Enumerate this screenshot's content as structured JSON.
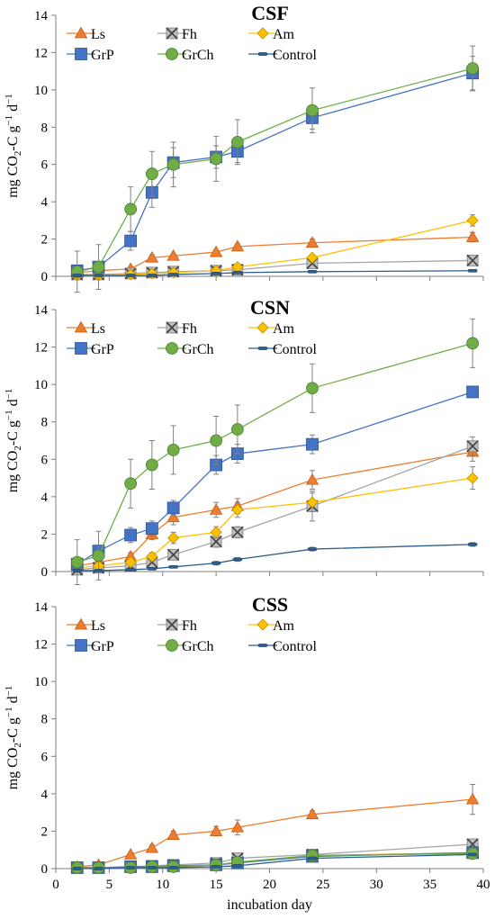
{
  "chart_data": [
    {
      "type": "line",
      "title": "CSF",
      "ylabel": "mg CO2-C g-1 d-1",
      "ylim": [
        0,
        14
      ],
      "yticks": [
        0,
        2,
        4,
        6,
        8,
        10,
        12,
        14
      ],
      "x": [
        2,
        4,
        7,
        9,
        11,
        15,
        17,
        24,
        39
      ],
      "legend": "top-left, 3 columns",
      "series": [
        {
          "name": "Ls",
          "marker": "triangle",
          "color": "#ED7D31",
          "values": [
            0.2,
            0.3,
            0.4,
            1.0,
            1.1,
            1.3,
            1.6,
            1.8,
            2.1
          ],
          "errors": [
            0.05,
            0.1,
            0.1,
            0.15,
            0.1,
            0.1,
            0.15,
            0.2,
            0.25
          ]
        },
        {
          "name": "Fh",
          "marker": "x-square",
          "color": "#A5A5A5",
          "values": [
            0.1,
            0.1,
            0.15,
            0.2,
            0.25,
            0.3,
            0.35,
            0.7,
            0.85
          ],
          "errors": [
            0.05,
            0.05,
            0.05,
            0.05,
            0.05,
            0.05,
            0.05,
            0.1,
            0.1
          ]
        },
        {
          "name": "Am",
          "marker": "diamond",
          "color": "#FFC000",
          "values": [
            0.05,
            0.05,
            0.1,
            0.15,
            0.2,
            0.3,
            0.5,
            1.0,
            3.0
          ],
          "errors": [
            0.03,
            0.03,
            0.05,
            0.05,
            0.05,
            0.05,
            0.1,
            0.15,
            0.3
          ]
        },
        {
          "name": "GrP",
          "marker": "square",
          "color": "#4472C4",
          "values": [
            0.3,
            0.5,
            1.9,
            4.5,
            6.1,
            6.4,
            6.7,
            8.5,
            10.9
          ],
          "errors": [
            0.2,
            0.2,
            0.5,
            0.8,
            0.8,
            0.6,
            0.6,
            0.6,
            0.9
          ]
        },
        {
          "name": "GrCh",
          "marker": "circle",
          "color": "#70AD47",
          "values": [
            0.25,
            0.5,
            3.6,
            5.5,
            6.0,
            6.3,
            7.2,
            8.9,
            11.15
          ],
          "errors": [
            1.1,
            1.2,
            1.2,
            1.2,
            1.2,
            1.2,
            1.2,
            1.2,
            1.2
          ]
        },
        {
          "name": "Control",
          "marker": "dash",
          "color": "#2E5E8C",
          "values": [
            0.05,
            0.05,
            0.05,
            0.05,
            0.1,
            0.15,
            0.2,
            0.25,
            0.3
          ],
          "errors": [
            0.02,
            0.02,
            0.02,
            0.02,
            0.03,
            0.03,
            0.03,
            0.05,
            0.05
          ]
        }
      ]
    },
    {
      "type": "line",
      "title": "CSN",
      "ylabel": "mg CO2-C g-1 d-1",
      "ylim": [
        0,
        14
      ],
      "yticks": [
        0,
        2,
        4,
        6,
        8,
        10,
        12,
        14
      ],
      "x": [
        2,
        4,
        7,
        9,
        11,
        15,
        17,
        24,
        39
      ],
      "legend": "top-left, 3 columns",
      "series": [
        {
          "name": "Ls",
          "marker": "triangle",
          "color": "#ED7D31",
          "values": [
            0.3,
            0.5,
            0.8,
            2.0,
            2.9,
            3.3,
            3.5,
            4.9,
            6.4
          ],
          "errors": [
            0.1,
            0.2,
            0.2,
            0.3,
            0.4,
            0.4,
            0.4,
            0.5,
            0.5
          ]
        },
        {
          "name": "Fh",
          "marker": "x-square",
          "color": "#A5A5A5",
          "values": [
            0.1,
            0.2,
            0.3,
            0.5,
            0.9,
            1.6,
            2.1,
            3.5,
            6.7
          ],
          "errors": [
            0.1,
            0.1,
            0.1,
            0.15,
            0.2,
            0.3,
            0.3,
            0.8,
            0.5
          ]
        },
        {
          "name": "Am",
          "marker": "diamond",
          "color": "#FFC000",
          "values": [
            0.2,
            0.3,
            0.5,
            0.8,
            1.8,
            2.1,
            3.3,
            3.7,
            5.0
          ],
          "errors": [
            0.1,
            0.1,
            0.15,
            0.2,
            0.3,
            0.3,
            0.4,
            0.5,
            0.6
          ]
        },
        {
          "name": "GrP",
          "marker": "square",
          "color": "#4472C4",
          "values": [
            0.4,
            1.1,
            1.95,
            2.3,
            3.4,
            5.7,
            6.3,
            6.8,
            9.6
          ],
          "errors": [
            0.3,
            0.3,
            0.4,
            0.4,
            0.4,
            0.5,
            0.5,
            0.5,
            0.3
          ]
        },
        {
          "name": "GrCh",
          "marker": "circle",
          "color": "#70AD47",
          "values": [
            0.5,
            0.85,
            4.7,
            5.7,
            6.5,
            7.0,
            7.6,
            9.8,
            12.2
          ],
          "errors": [
            1.2,
            1.3,
            1.3,
            1.3,
            1.3,
            1.3,
            1.3,
            1.3,
            1.3
          ]
        },
        {
          "name": "Control",
          "marker": "dash",
          "color": "#2E5E8C",
          "values": [
            0.05,
            0.05,
            0.1,
            0.15,
            0.25,
            0.45,
            0.65,
            1.2,
            1.45
          ],
          "errors": [
            0.02,
            0.02,
            0.03,
            0.05,
            0.05,
            0.1,
            0.1,
            0.1,
            0.1
          ]
        }
      ]
    },
    {
      "type": "line",
      "title": "CSS",
      "ylabel": "mg CO2-C g-1 d-1",
      "xlabel": "incubation day",
      "ylim": [
        0,
        14
      ],
      "yticks": [
        0,
        2,
        4,
        6,
        8,
        10,
        12,
        14
      ],
      "xlim": [
        0,
        40
      ],
      "xticks": [
        0,
        5,
        10,
        15,
        20,
        25,
        30,
        35,
        40
      ],
      "x": [
        2,
        4,
        7,
        9,
        11,
        15,
        17,
        24,
        39
      ],
      "legend": "top-left, 3 columns",
      "series": [
        {
          "name": "Ls",
          "marker": "triangle",
          "color": "#ED7D31",
          "values": [
            0.1,
            0.2,
            0.75,
            1.1,
            1.8,
            2.0,
            2.2,
            2.9,
            3.7
          ],
          "errors": [
            0.05,
            0.05,
            0.1,
            0.15,
            0.2,
            0.25,
            0.4,
            0.2,
            0.8
          ]
        },
        {
          "name": "Fh",
          "marker": "x-square",
          "color": "#A5A5A5",
          "values": [
            0.05,
            0.05,
            0.1,
            0.15,
            0.2,
            0.3,
            0.55,
            0.75,
            1.3
          ],
          "errors": [
            0.02,
            0.02,
            0.05,
            0.05,
            0.05,
            0.05,
            0.1,
            0.1,
            0.2
          ]
        },
        {
          "name": "Am",
          "marker": "diamond",
          "color": "#FFC000",
          "values": [
            0.05,
            0.05,
            0.05,
            0.1,
            0.1,
            0.2,
            0.3,
            0.7,
            0.85
          ],
          "errors": [
            0.02,
            0.02,
            0.02,
            0.05,
            0.05,
            0.05,
            0.05,
            0.1,
            0.1
          ]
        },
        {
          "name": "GrP",
          "marker": "square",
          "color": "#4472C4",
          "values": [
            0.05,
            0.05,
            0.1,
            0.1,
            0.15,
            0.2,
            0.3,
            0.65,
            0.85
          ],
          "errors": [
            0.02,
            0.02,
            0.05,
            0.05,
            0.05,
            0.05,
            0.05,
            0.1,
            0.1
          ]
        },
        {
          "name": "GrCh",
          "marker": "circle",
          "color": "#70AD47",
          "values": [
            0.05,
            0.05,
            0.05,
            0.1,
            0.1,
            0.2,
            0.35,
            0.7,
            0.8
          ],
          "errors": [
            0.02,
            0.02,
            0.02,
            0.05,
            0.05,
            0.05,
            0.05,
            0.1,
            0.1
          ]
        },
        {
          "name": "Control",
          "marker": "dash",
          "color": "#2E5E8C",
          "values": [
            0.0,
            0.0,
            0.05,
            0.05,
            0.05,
            0.1,
            0.15,
            0.55,
            0.75
          ],
          "errors": [
            0.02,
            0.02,
            0.02,
            0.02,
            0.02,
            0.02,
            0.05,
            0.05,
            0.05
          ]
        }
      ]
    }
  ]
}
